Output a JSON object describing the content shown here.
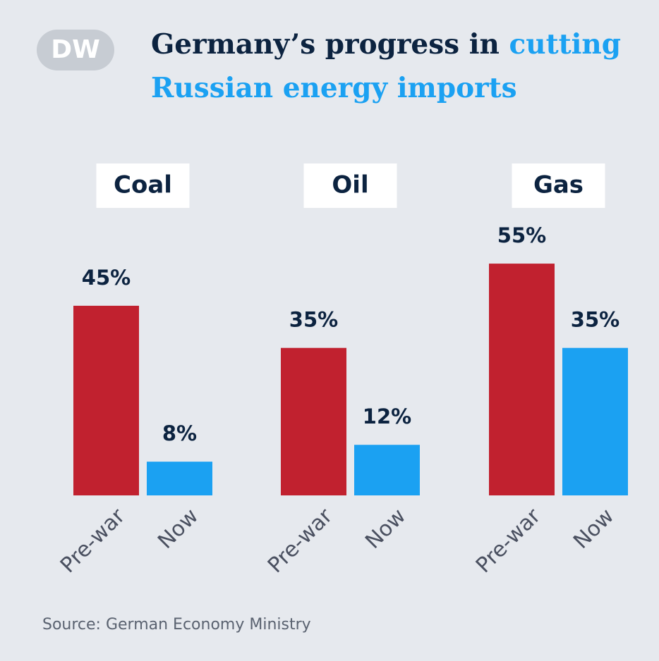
{
  "logo": "DW",
  "chart_data": {
    "type": "bar",
    "title": {
      "line1": "Germany’s progress in",
      "highlight": "cutting",
      "line2": "Russian energy imports"
    },
    "title_color": "#0c2340",
    "highlight_color": "#1ba1f2",
    "categories": [
      "Pre-war",
      "Now"
    ],
    "colors": [
      "#c1212f",
      "#1ba1f2"
    ],
    "groups": [
      {
        "name": "Coal",
        "values": [
          45,
          8
        ],
        "value_labels": [
          "45%",
          "8%"
        ]
      },
      {
        "name": "Oil",
        "values": [
          35,
          12
        ],
        "value_labels": [
          "35%",
          "12%"
        ]
      },
      {
        "name": "Gas",
        "values": [
          55,
          35
        ],
        "value_labels": [
          "55%",
          "35%"
        ]
      }
    ],
    "source": "Source: German Economy Ministry"
  }
}
